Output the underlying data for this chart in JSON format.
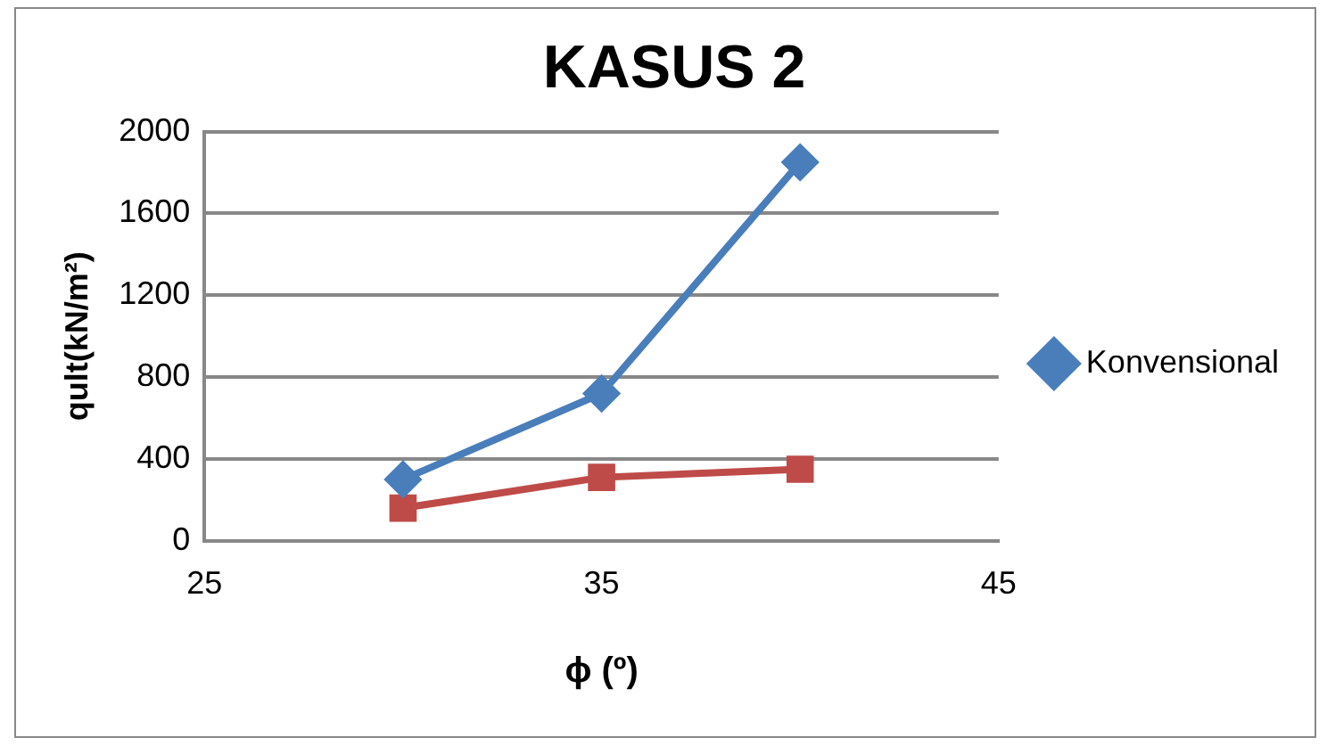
{
  "chart_data": {
    "type": "line",
    "title": "KASUS 2",
    "xlabel": "ϕ (º)",
    "ylabel": "qult(kN/m²)",
    "x": [
      30,
      35,
      40
    ],
    "series": [
      {
        "name": "Konvensional",
        "color": "#4a7ebb",
        "marker": "diamond",
        "values": [
          300,
          720,
          1850
        ]
      },
      {
        "color": "#be4b48",
        "marker": "square",
        "values": [
          160,
          310,
          350
        ]
      }
    ],
    "xlim": [
      25,
      45
    ],
    "xticks": [
      25,
      35,
      45
    ],
    "ylim": [
      0,
      2000
    ],
    "yticks": [
      0,
      400,
      800,
      1200,
      1600,
      2000
    ],
    "grid": "y",
    "legend": "right"
  }
}
